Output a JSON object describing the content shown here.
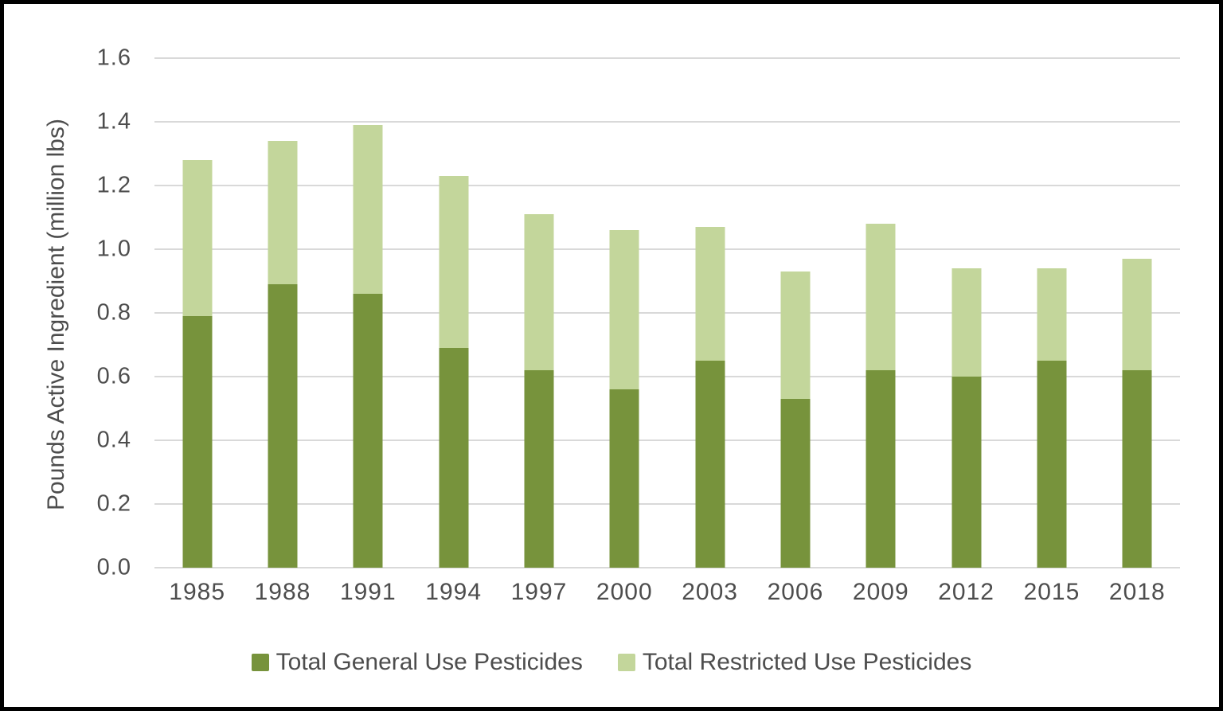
{
  "style": {
    "gridline_color": "#d9d9d9",
    "text_color": "#4d4d4d",
    "frame_border_color": "#000000",
    "background": "#ffffff"
  },
  "chart_data": {
    "type": "bar",
    "stacked": true,
    "title": "",
    "xlabel": "",
    "ylabel": "Pounds Active Ingredient (million lbs)",
    "ylim": [
      0,
      1.6
    ],
    "yticks": [
      0.0,
      0.2,
      0.4,
      0.6,
      0.8,
      1.0,
      1.2,
      1.4,
      1.6
    ],
    "ytick_labels": [
      "0.0",
      "0.2",
      "0.4",
      "0.6",
      "0.8",
      "1.0",
      "1.2",
      "1.4",
      "1.6"
    ],
    "grid": true,
    "legend_position": "bottom",
    "categories": [
      "1985",
      "1988",
      "1991",
      "1994",
      "1997",
      "2000",
      "2003",
      "2006",
      "2009",
      "2012",
      "2015",
      "2018"
    ],
    "series": [
      {
        "name": "Total General Use Pesticides",
        "color": "#77933C",
        "values": [
          0.79,
          0.89,
          0.86,
          0.69,
          0.62,
          0.56,
          0.65,
          0.53,
          0.62,
          0.6,
          0.65,
          0.62
        ]
      },
      {
        "name": "Total Restricted Use Pesticides",
        "color": "#C3D69B",
        "values": [
          0.49,
          0.45,
          0.53,
          0.54,
          0.49,
          0.5,
          0.42,
          0.4,
          0.46,
          0.34,
          0.29,
          0.35
        ]
      }
    ],
    "totals": [
      1.28,
      1.34,
      1.39,
      1.23,
      1.11,
      1.06,
      1.07,
      0.93,
      1.08,
      0.94,
      0.94,
      0.97
    ]
  }
}
